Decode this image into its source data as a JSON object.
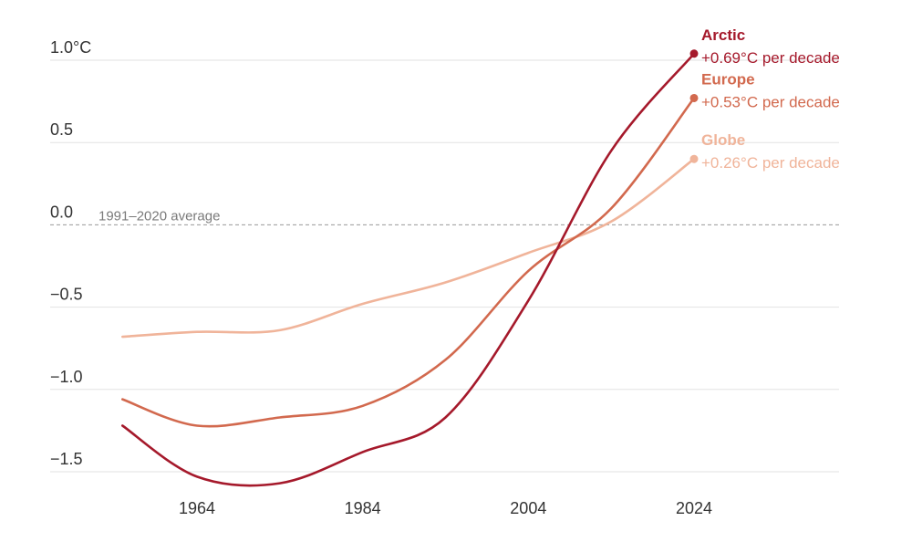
{
  "chart_data": {
    "type": "line",
    "ylabel": "°C",
    "ylim": [
      -1.6,
      1.1
    ],
    "xlim": [
      1956,
      2044
    ],
    "y_ticks": [
      {
        "value": 1.0,
        "label": "1.0°C"
      },
      {
        "value": 0.5,
        "label": "0.5"
      },
      {
        "value": 0.0,
        "label": "0.0"
      },
      {
        "value": -0.5,
        "label": "−0.5"
      },
      {
        "value": -1.0,
        "label": "−1.0"
      },
      {
        "value": -1.5,
        "label": "−1.5"
      }
    ],
    "x_ticks": [
      {
        "value": 1964,
        "label": "1964"
      },
      {
        "value": 1984,
        "label": "1984"
      },
      {
        "value": 2004,
        "label": "2004"
      },
      {
        "value": 2024,
        "label": "2024"
      }
    ],
    "grid": true,
    "reference_line": {
      "value": 0.0,
      "label": "1991–2020 average"
    },
    "series": [
      {
        "name": "Globe",
        "annotation": "+0.26°C per decade",
        "color": "#f0b49a",
        "x": [
          1955,
          1964,
          1974,
          1984,
          1994,
          2004,
          2014,
          2024
        ],
        "values": [
          -0.68,
          -0.65,
          -0.64,
          -0.48,
          -0.35,
          -0.17,
          0.02,
          0.4
        ]
      },
      {
        "name": "Europe",
        "annotation": "+0.53°C per decade",
        "color": "#d2694e",
        "x": [
          1955,
          1964,
          1974,
          1984,
          1994,
          2004,
          2014,
          2024
        ],
        "values": [
          -1.06,
          -1.22,
          -1.17,
          -1.1,
          -0.82,
          -0.28,
          0.1,
          0.77
        ]
      },
      {
        "name": "Arctic",
        "annotation": "+0.69°C per decade",
        "color": "#a5192b",
        "x": [
          1955,
          1964,
          1974,
          1984,
          1994,
          2004,
          2014,
          2024
        ],
        "values": [
          -1.22,
          -1.53,
          -1.57,
          -1.38,
          -1.17,
          -0.46,
          0.45,
          1.04
        ]
      }
    ]
  }
}
